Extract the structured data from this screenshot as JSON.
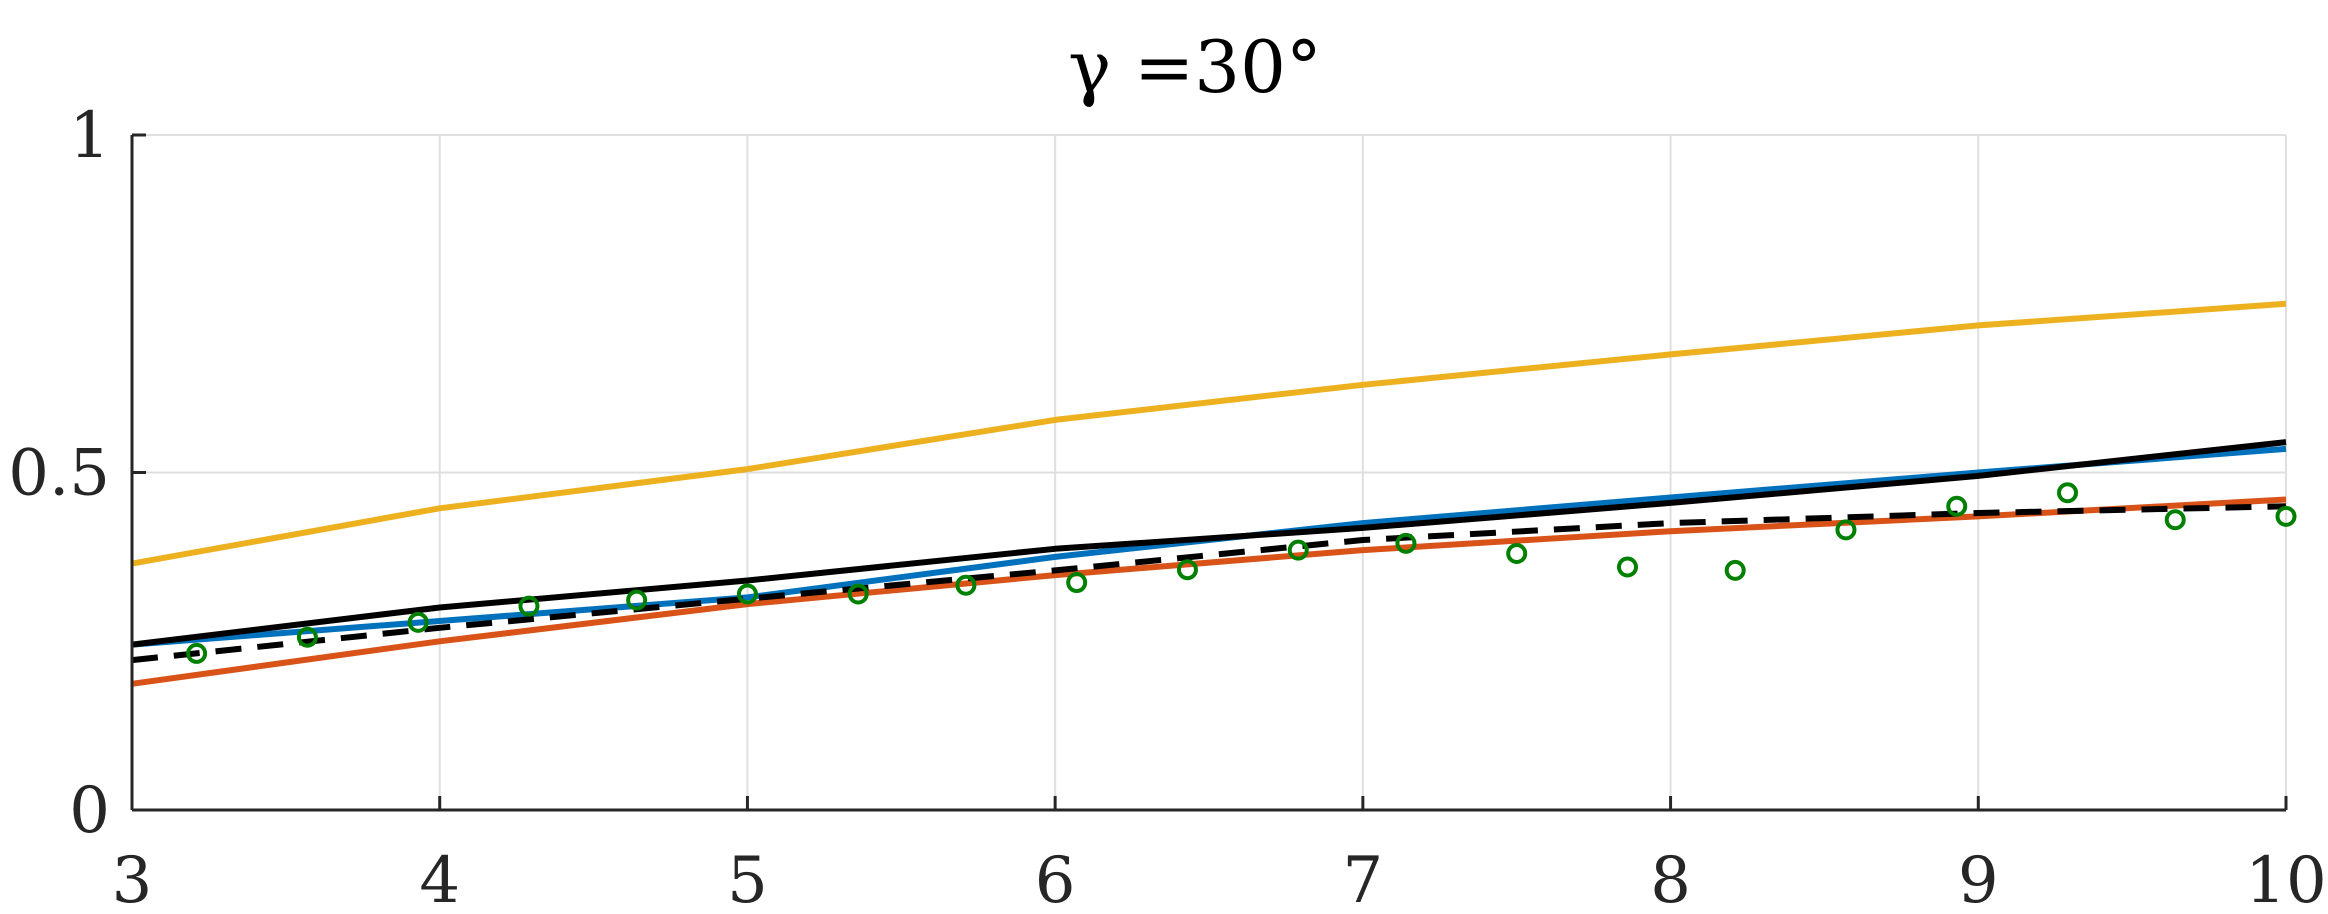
{
  "chart_data": {
    "type": "line",
    "title": "γ =30°",
    "xlabel": "",
    "ylabel": "",
    "xlim": [
      3,
      10
    ],
    "ylim": [
      0,
      1
    ],
    "grid": true,
    "x_ticks": [
      3,
      4,
      5,
      6,
      7,
      8,
      9,
      10
    ],
    "x_tick_labels": [
      "3",
      "4",
      "5",
      "6",
      "7",
      "8",
      "9",
      "10"
    ],
    "y_ticks": [
      0,
      0.5,
      1
    ],
    "y_tick_labels": [
      "0",
      "0.5",
      "1"
    ],
    "series": [
      {
        "style": "solid",
        "color": "#EDB120",
        "x": [
          3,
          4,
          5,
          6,
          7,
          8,
          9,
          10
        ],
        "y": [
          0.365,
          0.447,
          0.505,
          0.578,
          0.63,
          0.675,
          0.718,
          0.75
        ]
      },
      {
        "style": "solid",
        "color": "#0072BD",
        "x": [
          3,
          4,
          5,
          6,
          7,
          8,
          9,
          10
        ],
        "y": [
          0.245,
          0.28,
          0.315,
          0.375,
          0.425,
          0.463,
          0.5,
          0.535
        ]
      },
      {
        "style": "solid",
        "color": "#000000",
        "x": [
          3,
          4,
          5,
          6,
          7,
          8,
          9,
          10
        ],
        "y": [
          0.245,
          0.3,
          0.34,
          0.387,
          0.418,
          0.455,
          0.495,
          0.545
        ]
      },
      {
        "style": "solid",
        "color": "#D95319",
        "x": [
          3,
          4,
          5,
          6,
          7,
          8,
          9,
          10
        ],
        "y": [
          0.187,
          0.25,
          0.305,
          0.348,
          0.385,
          0.413,
          0.435,
          0.46
        ]
      },
      {
        "style": "dashed",
        "color": "#000000",
        "x": [
          3,
          4,
          5,
          6,
          7,
          8,
          9,
          10
        ],
        "y": [
          0.222,
          0.27,
          0.313,
          0.355,
          0.4,
          0.425,
          0.44,
          0.45
        ]
      },
      {
        "style": "markers",
        "color": "#008000",
        "x": [
          3.21,
          3.57,
          3.93,
          4.29,
          4.64,
          5.0,
          5.36,
          5.71,
          6.07,
          6.43,
          6.79,
          7.14,
          7.5,
          7.86,
          8.21,
          8.57,
          8.93,
          9.29,
          9.64,
          10.0
        ],
        "y": [
          0.232,
          0.256,
          0.278,
          0.302,
          0.311,
          0.32,
          0.32,
          0.333,
          0.337,
          0.356,
          0.385,
          0.395,
          0.38,
          0.36,
          0.355,
          0.415,
          0.45,
          0.47,
          0.43,
          0.435
        ]
      }
    ]
  }
}
